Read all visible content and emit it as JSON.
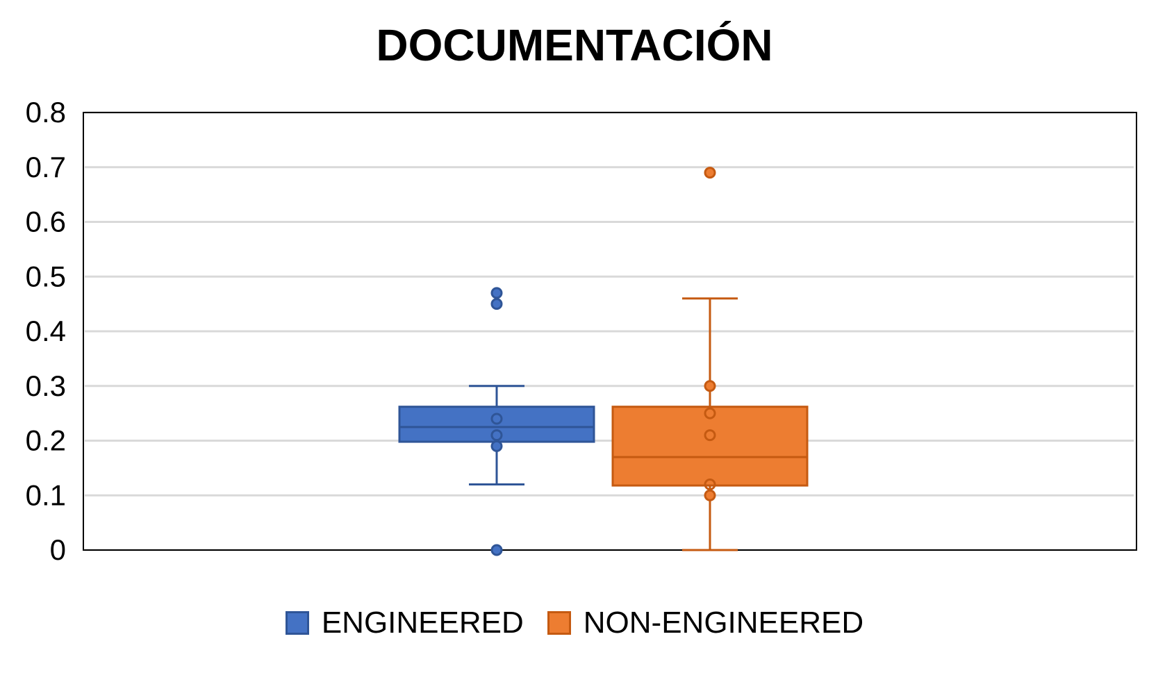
{
  "chart_data": {
    "type": "boxplot",
    "title": "DOCUMENTACIÓN",
    "xlabel": "",
    "ylabel": "",
    "ylim": [
      0,
      0.8
    ],
    "yticks": [
      "0",
      "0.1",
      "0.2",
      "0.3",
      "0.4",
      "0.5",
      "0.6",
      "0.7",
      "0.8"
    ],
    "grid": true,
    "legend_position": "bottom",
    "series": [
      {
        "name": "ENGINEERED",
        "color": "#4472C4",
        "edge_color": "#2F5597",
        "whisker_low": 0.12,
        "q1": 0.198,
        "median": 0.225,
        "q3": 0.262,
        "whisker_high": 0.3,
        "points": [
          0.0,
          0.19,
          0.21,
          0.24,
          0.45,
          0.47
        ],
        "filled_points": [
          0.0,
          0.19,
          0.45,
          0.47
        ]
      },
      {
        "name": "NON-ENGINEERED",
        "color": "#ED7D31",
        "edge_color": "#C55A11",
        "whisker_low": 0.0,
        "q1": 0.118,
        "median": 0.17,
        "q3": 0.262,
        "whisker_high": 0.46,
        "points": [
          0.1,
          0.12,
          0.21,
          0.25,
          0.3,
          0.69
        ],
        "filled_points": [
          0.1,
          0.3,
          0.69
        ]
      }
    ]
  }
}
